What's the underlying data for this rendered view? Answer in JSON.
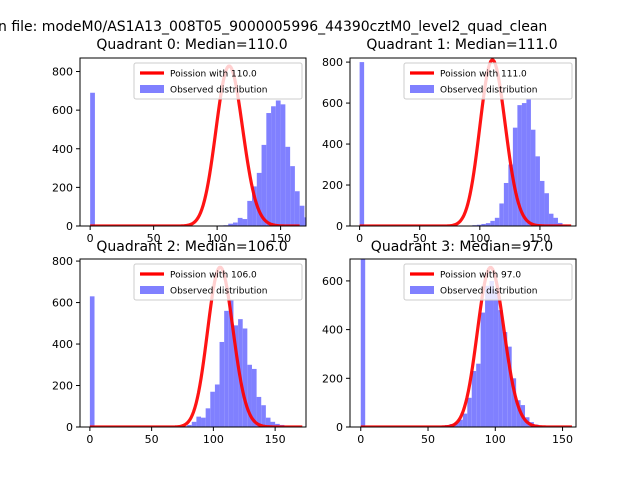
{
  "figure": {
    "suptitle": "n file: modeM0/AS1A13_008T05_9000005996_44390cztM0_level2_quad_clean"
  },
  "colors": {
    "poisson_line": "#ff0000",
    "observed_bars": "#8080ff",
    "axes": "#000000",
    "background": "#ffffff"
  },
  "chart_data": [
    {
      "type": "bar",
      "title": "Quadrant 0: Median=110.0",
      "xlim": [
        -8,
        170
      ],
      "ylim": [
        0,
        870
      ],
      "xticks": [
        0,
        50,
        100,
        150
      ],
      "yticks": [
        0,
        200,
        400,
        600,
        800
      ],
      "legend": {
        "placement": "upper right",
        "entries": [
          "Poission with 110.0",
          "Observed distribution"
        ]
      },
      "poisson": {
        "name": "Poission with 110.0",
        "mean": 110.0,
        "peak": 828,
        "x_range": [
          0,
          165
        ]
      },
      "bins": {
        "start": 0,
        "width": 3.75,
        "counts": [
          690,
          0,
          0,
          0,
          0,
          0,
          0,
          0,
          0,
          0,
          0,
          0,
          0,
          0,
          0,
          0,
          0,
          0,
          0,
          0,
          0,
          0,
          0,
          0,
          0,
          0,
          2,
          3,
          4,
          12,
          18,
          42,
          36,
          130,
          205,
          275,
          420,
          585,
          620,
          650,
          630,
          410,
          310,
          180,
          105,
          45,
          38,
          10,
          4,
          2,
          1,
          1,
          0,
          0,
          0,
          0,
          0,
          0,
          0,
          0,
          0,
          0,
          0,
          0,
          0
        ]
      }
    },
    {
      "type": "bar",
      "title": "Quadrant 1: Median=111.0",
      "xlim": [
        -8,
        180
      ],
      "ylim": [
        0,
        820
      ],
      "xticks": [
        0,
        50,
        100,
        150
      ],
      "yticks": [
        0,
        200,
        400,
        600,
        800
      ],
      "legend": {
        "placement": "upper right",
        "entries": [
          "Poission with 111.0",
          "Observed distribution"
        ]
      },
      "poisson": {
        "name": "Poission with 111.0",
        "mean": 111.0,
        "peak": 810,
        "x_range": [
          0,
          176
        ]
      },
      "bins": {
        "start": 0,
        "width": 3.75,
        "counts": [
          800,
          0,
          0,
          0,
          0,
          0,
          0,
          0,
          0,
          0,
          0,
          0,
          0,
          0,
          0,
          0,
          0,
          0,
          0,
          0,
          0,
          0,
          0,
          0,
          2,
          4,
          6,
          10,
          14,
          25,
          40,
          110,
          210,
          300,
          480,
          590,
          600,
          620,
          470,
          340,
          220,
          160,
          60,
          40,
          15,
          6,
          2,
          1,
          0,
          0,
          0,
          0,
          0,
          0,
          0,
          0,
          0,
          0,
          0,
          0,
          0,
          0,
          0,
          0,
          0,
          0,
          0
        ]
      }
    },
    {
      "type": "bar",
      "title": "Quadrant 2: Median=106.0",
      "xlim": [
        -8,
        175
      ],
      "ylim": [
        0,
        810
      ],
      "xticks": [
        0,
        50,
        100,
        150
      ],
      "yticks": [
        0,
        200,
        400,
        600,
        800
      ],
      "legend": {
        "placement": "upper right",
        "entries": [
          "Poission with 106.0",
          "Observed distribution"
        ]
      },
      "poisson": {
        "name": "Poission with 106.0",
        "mean": 106.0,
        "peak": 770,
        "x_range": [
          0,
          172
        ]
      },
      "bins": {
        "start": 0,
        "width": 3.75,
        "counts": [
          630,
          0,
          0,
          0,
          0,
          0,
          0,
          0,
          0,
          0,
          0,
          0,
          0,
          0,
          0,
          0,
          0,
          0,
          0,
          2,
          4,
          10,
          25,
          50,
          45,
          90,
          170,
          205,
          410,
          560,
          610,
          490,
          520,
          475,
          300,
          280,
          145,
          105,
          45,
          25,
          15,
          10,
          3,
          1,
          0,
          0,
          0,
          0
        ]
      }
    },
    {
      "type": "bar",
      "title": "Quadrant 3: Median=97.0",
      "xlim": [
        -8,
        160
      ],
      "ylim": [
        0,
        690
      ],
      "xticks": [
        0,
        50,
        100,
        150
      ],
      "yticks": [
        0,
        200,
        400,
        600
      ],
      "legend": {
        "placement": "upper right",
        "entries": [
          "Poission with 97.0",
          "Observed distribution"
        ]
      },
      "poisson": {
        "name": "Poission with 97.0",
        "mean": 97.0,
        "peak": 655,
        "x_range": [
          0,
          157
        ]
      },
      "bins": {
        "start": 0,
        "width": 3.3,
        "counts": [
          690,
          0,
          0,
          0,
          0,
          0,
          0,
          0,
          0,
          0,
          0,
          0,
          0,
          0,
          0,
          0,
          0,
          2,
          5,
          8,
          12,
          18,
          30,
          55,
          120,
          230,
          260,
          470,
          580,
          600,
          560,
          480,
          390,
          330,
          200,
          110,
          90,
          40,
          20,
          10,
          5,
          2,
          1,
          0,
          0,
          0,
          0,
          0
        ]
      }
    }
  ]
}
